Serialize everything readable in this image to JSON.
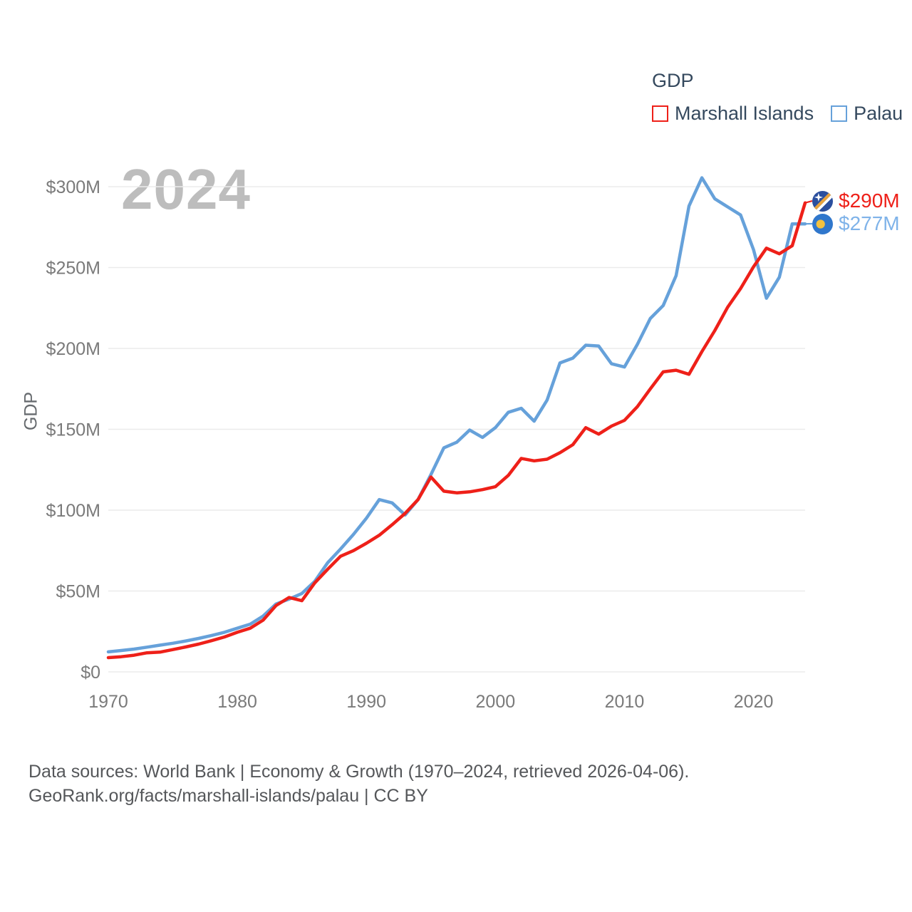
{
  "watermark": "2024",
  "legend": {
    "title": "GDP",
    "items": [
      {
        "label": "Marshall Islands",
        "color": "#ee2019"
      },
      {
        "label": "Palau",
        "color": "#66a1da"
      }
    ]
  },
  "y_axis": {
    "title": "GDP"
  },
  "end_labels": [
    {
      "series": "Marshall Islands",
      "text": "$290M",
      "color": "#ee2019",
      "flag": "marshall-islands-flag"
    },
    {
      "series": "Palau",
      "text": "$277M",
      "color": "#7fb3e9",
      "flag": "palau-flag"
    }
  ],
  "footer": {
    "line1": "Data sources: World Bank | Economy & Growth (1970–2024, retrieved 2026-04-06).",
    "line2": "GeoRank.org/facts/marshall-islands/palau | CC BY"
  },
  "chart_data": {
    "type": "line",
    "title": "GDP",
    "xlabel": "",
    "ylabel": "GDP",
    "grid": true,
    "legend_position": "top-right",
    "ylim": [
      0,
      310
    ],
    "yticks": [
      {
        "v": 0,
        "label": "$0"
      },
      {
        "v": 50,
        "label": "$50M"
      },
      {
        "v": 100,
        "label": "$100M"
      },
      {
        "v": 150,
        "label": "$150M"
      },
      {
        "v": 200,
        "label": "$200M"
      },
      {
        "v": 250,
        "label": "$250M"
      },
      {
        "v": 300,
        "label": "$300M"
      }
    ],
    "xticks": [
      1970,
      1980,
      1990,
      2000,
      2010,
      2020
    ],
    "x": [
      1970,
      1971,
      1972,
      1973,
      1974,
      1975,
      1976,
      1977,
      1978,
      1979,
      1980,
      1981,
      1982,
      1983,
      1984,
      1985,
      1986,
      1987,
      1988,
      1989,
      1990,
      1991,
      1992,
      1993,
      1994,
      1995,
      1996,
      1997,
      1998,
      1999,
      2000,
      2001,
      2002,
      2003,
      2004,
      2005,
      2006,
      2007,
      2008,
      2009,
      2010,
      2011,
      2012,
      2013,
      2014,
      2015,
      2016,
      2017,
      2018,
      2019,
      2020,
      2021,
      2022,
      2023,
      2024
    ],
    "series": [
      {
        "name": "Marshall Islands",
        "color": "#ee2019",
        "values": [
          8.8,
          9.4,
          10.3,
          11.8,
          12.2,
          13.8,
          15.4,
          17.2,
          19.3,
          21.6,
          24.5,
          27,
          32,
          41,
          46,
          44,
          55,
          63.5,
          71.5,
          75,
          79.5,
          84.5,
          91,
          98,
          106.5,
          120.5,
          111.7,
          110.7,
          111.3,
          112.7,
          114.5,
          121.5,
          132,
          130.5,
          131.5,
          135.5,
          140.5,
          151,
          147,
          152,
          155.5,
          164,
          175,
          185.5,
          186.5,
          184,
          198,
          211,
          225.5,
          237,
          250.5,
          262,
          258.5,
          263.5,
          290
        ]
      },
      {
        "name": "Palau",
        "color": "#66a1da",
        "values": [
          12.4,
          13.2,
          14.1,
          15.3,
          16.5,
          17.7,
          19.1,
          20.7,
          22.5,
          24.5,
          27,
          29.5,
          34.5,
          42,
          45,
          48.5,
          56,
          67.5,
          76,
          85,
          95,
          106.5,
          104.5,
          97,
          106.5,
          122,
          138.5,
          142,
          149.5,
          145,
          151,
          160.5,
          163,
          155,
          168,
          191,
          194,
          202,
          201.5,
          190.5,
          188.5,
          202.5,
          218.5,
          226.5,
          245,
          288,
          305.5,
          292.5,
          287.5,
          282.5,
          261,
          231,
          244,
          277,
          277
        ]
      }
    ],
    "end_values": [
      {
        "series": "Marshall Islands",
        "value": 290
      },
      {
        "series": "Palau",
        "value": 277
      }
    ]
  }
}
